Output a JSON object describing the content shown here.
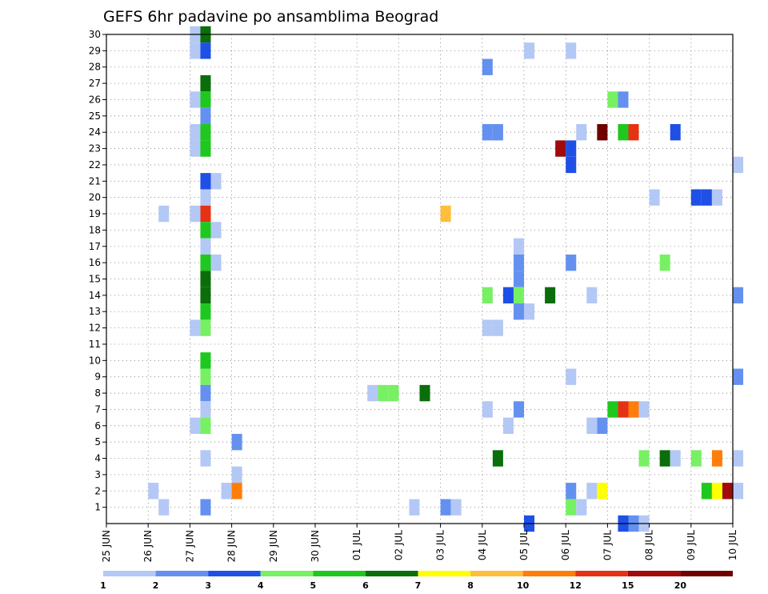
{
  "chart_data": {
    "type": "heatmap",
    "title": "GEFS 6hr padavine po ansamblima Beograd",
    "ylabels": [
      "1",
      "2",
      "3",
      "4",
      "5",
      "6",
      "7",
      "8",
      "9",
      "10",
      "11",
      "12",
      "13",
      "14",
      "15",
      "16",
      "17",
      "18",
      "19",
      "20",
      "21",
      "22",
      "23",
      "24",
      "25",
      "26",
      "27",
      "28",
      "29",
      "30"
    ],
    "xlabels": [
      "25 JUN",
      "26 JUN",
      "27 JUN",
      "28 JUN",
      "29 JUN",
      "30 JUN",
      "01 JUL",
      "02 JUL",
      "03 JUL",
      "04 JUL",
      "05 JUL",
      "06 JUL",
      "07 JUL",
      "08 JUL",
      "09 JUL",
      "10 JUL"
    ],
    "x_unit": "6-hour step from 25 JUN 00Z",
    "grid": true,
    "colorbar": {
      "ticks": [
        "1",
        "2",
        "3",
        "4",
        "5",
        "6",
        "7",
        "8",
        "10",
        "12",
        "15",
        "20"
      ],
      "colors": [
        "#b4c8f5",
        "#6491f0",
        "#1e50e6",
        "#78f064",
        "#1ec81e",
        "#0a6e0a",
        "#ffff00",
        "#ffbe3c",
        "#ff7d0a",
        "#e63214",
        "#a00a0a",
        "#6e0000"
      ]
    },
    "cells": [
      [
        8,
        30,
        0
      ],
      [
        9,
        30,
        5
      ],
      [
        8,
        29,
        0
      ],
      [
        9,
        29,
        2
      ],
      [
        40,
        29,
        0
      ],
      [
        44,
        29,
        0
      ],
      [
        36,
        28,
        1
      ],
      [
        9,
        27,
        5
      ],
      [
        8,
        26,
        0
      ],
      [
        9,
        26,
        4
      ],
      [
        48,
        26,
        3
      ],
      [
        49,
        26,
        1
      ],
      [
        9,
        25,
        1
      ],
      [
        8,
        24,
        0
      ],
      [
        9,
        24,
        4
      ],
      [
        36,
        24,
        1
      ],
      [
        37,
        24,
        1
      ],
      [
        45,
        24,
        0
      ],
      [
        47,
        24,
        11
      ],
      [
        49,
        24,
        4
      ],
      [
        50,
        24,
        9
      ],
      [
        54,
        24,
        2
      ],
      [
        8,
        23,
        0
      ],
      [
        9,
        23,
        4
      ],
      [
        43,
        23,
        10
      ],
      [
        44,
        23,
        2
      ],
      [
        44,
        22,
        2
      ],
      [
        60,
        22,
        0
      ],
      [
        9,
        21,
        2
      ],
      [
        10,
        21,
        0
      ],
      [
        9,
        20,
        0
      ],
      [
        52,
        20,
        0
      ],
      [
        56,
        20,
        2
      ],
      [
        57,
        20,
        2
      ],
      [
        58,
        20,
        0
      ],
      [
        5,
        19,
        0
      ],
      [
        8,
        19,
        0
      ],
      [
        9,
        19,
        9
      ],
      [
        32,
        19,
        7
      ],
      [
        9,
        18,
        4
      ],
      [
        10,
        18,
        0
      ],
      [
        9,
        17,
        0
      ],
      [
        39,
        17,
        0
      ],
      [
        9,
        16,
        4
      ],
      [
        10,
        16,
        0
      ],
      [
        39,
        16,
        1
      ],
      [
        44,
        16,
        1
      ],
      [
        53,
        16,
        3
      ],
      [
        9,
        15,
        5
      ],
      [
        39,
        15,
        1
      ],
      [
        9,
        14,
        5
      ],
      [
        36,
        14,
        3
      ],
      [
        38,
        14,
        2
      ],
      [
        39,
        14,
        3
      ],
      [
        42,
        14,
        5
      ],
      [
        46,
        14,
        0
      ],
      [
        60,
        14,
        1
      ],
      [
        9,
        13,
        4
      ],
      [
        39,
        13,
        1
      ],
      [
        40,
        13,
        0
      ],
      [
        8,
        12,
        0
      ],
      [
        9,
        12,
        3
      ],
      [
        36,
        12,
        0
      ],
      [
        37,
        12,
        0
      ],
      [
        9,
        10,
        4
      ],
      [
        9,
        9,
        3
      ],
      [
        44,
        9,
        0
      ],
      [
        60,
        9,
        1
      ],
      [
        9,
        8,
        1
      ],
      [
        25,
        8,
        0
      ],
      [
        26,
        8,
        3
      ],
      [
        27,
        8,
        3
      ],
      [
        30,
        8,
        5
      ],
      [
        9,
        7,
        0
      ],
      [
        36,
        7,
        0
      ],
      [
        39,
        7,
        1
      ],
      [
        48,
        7,
        4
      ],
      [
        49,
        7,
        9
      ],
      [
        50,
        7,
        8
      ],
      [
        51,
        7,
        0
      ],
      [
        8,
        6,
        0
      ],
      [
        9,
        6,
        3
      ],
      [
        38,
        6,
        0
      ],
      [
        46,
        6,
        0
      ],
      [
        47,
        6,
        1
      ],
      [
        12,
        5,
        1
      ],
      [
        9,
        4,
        0
      ],
      [
        37,
        4,
        5
      ],
      [
        51,
        4,
        3
      ],
      [
        53,
        4,
        5
      ],
      [
        54,
        4,
        0
      ],
      [
        56,
        4,
        3
      ],
      [
        58,
        4,
        8
      ],
      [
        60,
        4,
        0
      ],
      [
        12,
        3,
        0
      ],
      [
        11,
        2,
        0
      ],
      [
        12,
        2,
        8
      ],
      [
        4,
        2,
        0
      ],
      [
        44,
        2,
        1
      ],
      [
        46,
        2,
        0
      ],
      [
        47,
        2,
        6
      ],
      [
        57,
        2,
        4
      ],
      [
        58,
        2,
        6
      ],
      [
        59,
        2,
        10
      ],
      [
        60,
        2,
        0
      ],
      [
        5,
        1,
        0
      ],
      [
        9,
        1,
        1
      ],
      [
        29,
        1,
        0
      ],
      [
        32,
        1,
        1
      ],
      [
        33,
        1,
        0
      ],
      [
        44,
        1,
        3
      ],
      [
        45,
        1,
        0
      ],
      [
        40,
        0,
        2
      ],
      [
        49,
        0,
        2
      ],
      [
        50,
        0,
        1
      ],
      [
        51,
        0,
        0
      ]
    ]
  }
}
